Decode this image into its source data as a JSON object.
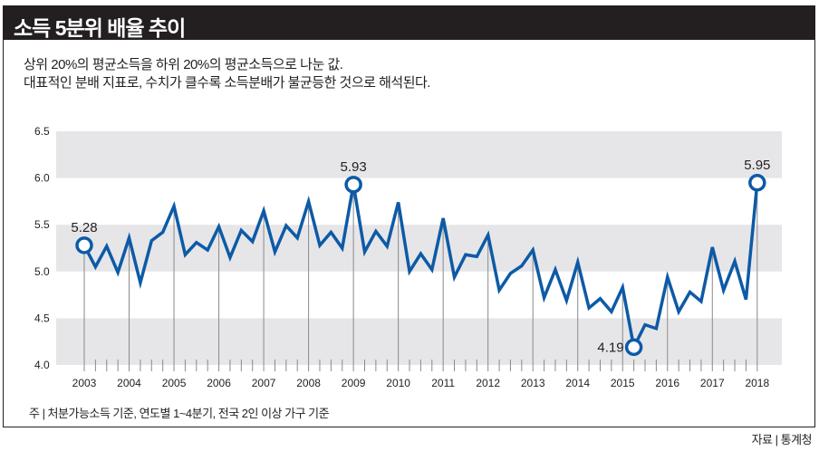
{
  "title": "소득 5분위 배율 추이",
  "description": [
    "상위 20%의 평균소득을 하위 20%의 평균소득으로 나눈 값.",
    "대표적인 분배 지표로, 수치가 클수록 소득분배가 불균등한 것으로 해석된다."
  ],
  "note": "주 | 처분가능소득 기준, 연도별 1~4분기, 전국 2인 이상 가구 기준",
  "source": "자료 | 통계청",
  "chart_data": {
    "type": "line",
    "title": "소득 5분위 배율 추이",
    "xlabel": "",
    "ylabel": "",
    "ylim": [
      4.0,
      6.5
    ],
    "yticks": [
      "4.0",
      "4.5",
      "5.0",
      "5.5",
      "6.0",
      "6.5"
    ],
    "xticks": [
      "2003",
      "2004",
      "2005",
      "2006",
      "2007",
      "2008",
      "2009",
      "2010",
      "2011",
      "2012",
      "2013",
      "2014",
      "2015",
      "2016",
      "2017",
      "2018"
    ],
    "x_unit": "quarter (Q1 of each year labeled)",
    "grid": "alternating horizontal bands",
    "line_color": "#0d5aa7",
    "band_color": "#e6e6e8",
    "series": [
      {
        "name": "소득 5분위 배율",
        "values": [
          5.28,
          5.05,
          5.27,
          4.99,
          5.36,
          4.88,
          5.33,
          5.42,
          5.7,
          5.18,
          5.31,
          5.23,
          5.48,
          5.15,
          5.44,
          5.32,
          5.65,
          5.21,
          5.49,
          5.36,
          5.75,
          5.28,
          5.42,
          5.25,
          5.93,
          5.21,
          5.43,
          5.27,
          5.74,
          5.0,
          5.19,
          5.02,
          5.57,
          4.94,
          5.18,
          5.16,
          5.39,
          4.8,
          4.98,
          5.06,
          5.23,
          4.72,
          5.02,
          4.69,
          5.1,
          4.61,
          4.71,
          4.57,
          4.83,
          4.19,
          4.43,
          4.39,
          4.94,
          4.57,
          4.78,
          4.68,
          5.26,
          4.8,
          5.11,
          4.7,
          5.95
        ]
      }
    ],
    "annotations": [
      {
        "index": 0,
        "label": "5.28",
        "pos": "above"
      },
      {
        "index": 24,
        "label": "5.93",
        "pos": "above"
      },
      {
        "index": 49,
        "label": "4.19",
        "pos": "left"
      },
      {
        "index": 60,
        "label": "5.95",
        "pos": "above"
      }
    ]
  }
}
